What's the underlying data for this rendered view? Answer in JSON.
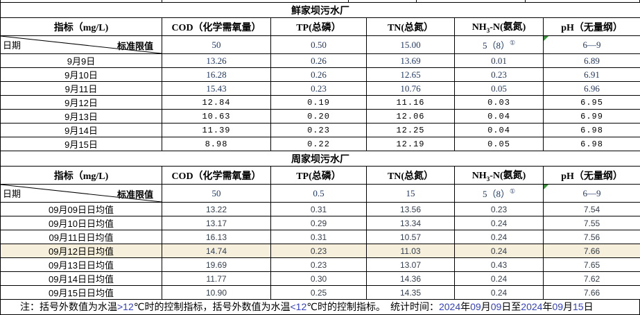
{
  "colors": {
    "value_navy": "#1F3864",
    "sans_value": "#333F4F",
    "accent_blue": "#3340C8",
    "highlight_bg": "#F6EFDC",
    "triangle_green": "#3A8E3A",
    "border": "#000000"
  },
  "columns": {
    "indicator_header": "指标（mg/L)",
    "date_label": "日期",
    "standard_label": "标准限值",
    "headers": [
      {
        "text": "COD（化学需氧量）"
      },
      {
        "text": "TP(总磷）"
      },
      {
        "text": "TN(总氮）"
      },
      {
        "pre": "NH",
        "sub": "3",
        "post": "-N(氨氮)"
      },
      {
        "text": "pH（无量纲）"
      }
    ]
  },
  "tables": [
    {
      "title": "鲜家坝污水厂",
      "limits": [
        "50",
        "0.50",
        "15.00",
        {
          "text": "5（8）",
          "sup": "①"
        },
        {
          "text": "6—9",
          "marker": "green-triangle"
        }
      ],
      "rows": [
        {
          "label": "9月9日",
          "values": [
            "13.26",
            "0.26",
            "13.69",
            "0.01",
            "6.89"
          ]
        },
        {
          "label": "9月10日",
          "values": [
            "16.28",
            "0.26",
            "12.65",
            "0.23",
            "6.91"
          ]
        },
        {
          "label": "9月11日",
          "values": [
            "15.43",
            "0.23",
            "10.76",
            "0.05",
            "6.96"
          ]
        },
        {
          "label": "9月12日",
          "values": [
            "12.84",
            "0.19",
            "11.16",
            "0.03",
            "6.95"
          ]
        },
        {
          "label": "9月13日",
          "values": [
            "10.63",
            "0.20",
            "12.06",
            "0.04",
            "6.99"
          ]
        },
        {
          "label": "9月14日",
          "values": [
            "11.39",
            "0.23",
            "12.25",
            "0.04",
            "6.98"
          ]
        },
        {
          "label": "9月15日",
          "values": [
            "8.98",
            "0.22",
            "12.19",
            "0.05",
            "6.98"
          ]
        }
      ]
    },
    {
      "title": "周家坝污水厂",
      "limits": [
        "50",
        "0.5",
        "15",
        {
          "text": "5（8）",
          "sup": "①"
        },
        {
          "text": "6—9",
          "marker": "green-triangle"
        }
      ],
      "rows": [
        {
          "label": "09月09日日均值",
          "values": [
            "13.22",
            "0.31",
            "13.56",
            "0.23",
            "7.54"
          ]
        },
        {
          "label": "09月10日日均值",
          "values": [
            "13.17",
            "0.29",
            "13.34",
            "0.24",
            "7.55"
          ]
        },
        {
          "label": "09月11日日均值",
          "values": [
            "16.13",
            "0.31",
            "10.57",
            "0.24",
            "7.56"
          ]
        },
        {
          "label": "09月12日日均值",
          "values": [
            "14.74",
            "0.23",
            "11.03",
            "0.24",
            "7.66"
          ],
          "highlight": true
        },
        {
          "label": "09月13日日均值",
          "values": [
            "19.69",
            "0.23",
            "13.07",
            "0.43",
            "7.65"
          ]
        },
        {
          "label": "09月14日日均值",
          "values": [
            "11.77",
            "0.30",
            "14.36",
            "0.24",
            "7.62"
          ]
        },
        {
          "label": "09月15日日均值",
          "values": [
            "10.90",
            "0.25",
            "14.35",
            "0.24",
            "7.66"
          ]
        }
      ]
    }
  ],
  "note": {
    "segments": [
      {
        "t": "注：括号外数值为水温",
        "c": "k"
      },
      {
        "t": ">12",
        "c": "b"
      },
      {
        "t": "℃时的控制指标，括号外数值为水温",
        "c": "k"
      },
      {
        "t": "<12",
        "c": "b"
      },
      {
        "t": "℃时的控制指标。",
        "c": "k"
      },
      {
        "t": "　统计时间：",
        "c": "k"
      },
      {
        "t": "2024",
        "c": "b"
      },
      {
        "t": "年",
        "c": "k"
      },
      {
        "t": "09",
        "c": "b"
      },
      {
        "t": "月",
        "c": "k"
      },
      {
        "t": "09",
        "c": "b"
      },
      {
        "t": "日至",
        "c": "k"
      },
      {
        "t": "2024",
        "c": "b"
      },
      {
        "t": "年",
        "c": "k"
      },
      {
        "t": "09",
        "c": "b"
      },
      {
        "t": "月",
        "c": "k"
      },
      {
        "t": "15",
        "c": "b"
      },
      {
        "t": "日",
        "c": "k"
      }
    ]
  }
}
